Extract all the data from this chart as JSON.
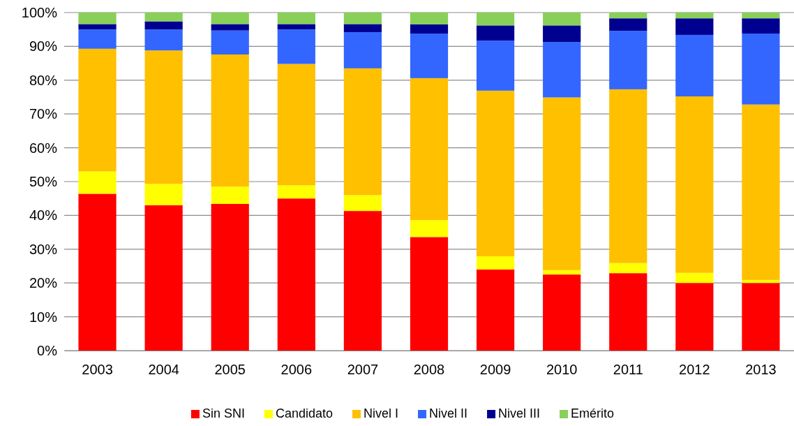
{
  "chart_data": {
    "type": "bar",
    "stacked": true,
    "categories": [
      "2003",
      "2004",
      "2005",
      "2006",
      "2007",
      "2008",
      "2009",
      "2010",
      "2011",
      "2012",
      "2013"
    ],
    "series": [
      {
        "name": "Sin SNI",
        "color": "#ff0000",
        "values": [
          46.4,
          43.0,
          43.4,
          45.0,
          41.3,
          33.6,
          24.0,
          22.5,
          22.9,
          20.0,
          20.0
        ]
      },
      {
        "name": "Candidato",
        "color": "#ffff00",
        "values": [
          6.6,
          6.3,
          5.1,
          3.9,
          4.7,
          5.0,
          3.9,
          1.3,
          3.0,
          3.0,
          0.9
        ]
      },
      {
        "name": "Nivel I",
        "color": "#ffc000",
        "values": [
          36.3,
          39.5,
          39.1,
          35.9,
          37.5,
          42.0,
          49.0,
          51.1,
          51.4,
          52.2,
          51.9
        ]
      },
      {
        "name": "Nivel II",
        "color": "#3366ff",
        "values": [
          5.7,
          6.2,
          7.1,
          10.2,
          10.7,
          13.2,
          14.8,
          16.4,
          17.3,
          18.2,
          21.0
        ]
      },
      {
        "name": "Nivel III",
        "color": "#000090",
        "values": [
          1.6,
          2.4,
          1.9,
          1.6,
          2.4,
          2.7,
          4.5,
          4.9,
          3.7,
          4.9,
          4.5
        ]
      },
      {
        "name": "Emérito",
        "color": "#88d058",
        "values": [
          3.4,
          2.6,
          3.4,
          3.4,
          3.4,
          3.5,
          3.8,
          3.8,
          1.7,
          1.7,
          1.7
        ]
      }
    ],
    "ylim": [
      0,
      100
    ],
    "yticks": [
      {
        "value": 0,
        "label": "0%"
      },
      {
        "value": 10,
        "label": "10%"
      },
      {
        "value": 20,
        "label": "20%"
      },
      {
        "value": 30,
        "label": "30%"
      },
      {
        "value": 40,
        "label": "40%"
      },
      {
        "value": 50,
        "label": "50%"
      },
      {
        "value": 60,
        "label": "60%"
      },
      {
        "value": 70,
        "label": "70%"
      },
      {
        "value": 80,
        "label": "80%"
      },
      {
        "value": 90,
        "label": "90%"
      },
      {
        "value": 100,
        "label": "100%"
      }
    ],
    "grid": "y",
    "legend": "bottom"
  }
}
